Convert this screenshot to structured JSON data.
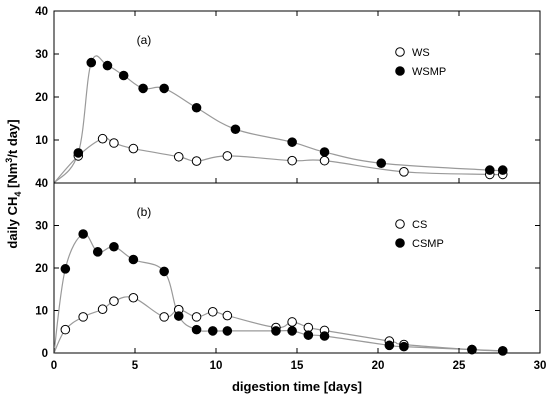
{
  "chart_data": {
    "type": "scatter",
    "xlabel": "digestion time [days]",
    "ylabel": {
      "prefix": "daily CH",
      "sub": "4",
      "mid": " [Nm",
      "sup": "3",
      "suffix": "/t   day]"
    },
    "x_ticks": [
      "0",
      "5",
      "10",
      "15",
      "20",
      "25",
      "30"
    ],
    "xlim": [
      0,
      30
    ],
    "colors": {
      "open_fill": "#ffffff",
      "filled_fill": "#000000",
      "curve": "#9a9a9a",
      "axis": "#000000"
    },
    "panels": [
      {
        "label": "(a)",
        "ylim": [
          0,
          40
        ],
        "y_ticks": [
          "40",
          "30",
          "20",
          "10",
          ""
        ],
        "legend": {
          "position": "top-right"
        },
        "series": [
          {
            "name": "WS",
            "marker": "open-circle",
            "points": [
              [
                1.5,
                6.3
              ],
              [
                3.0,
                10.3
              ],
              [
                3.7,
                9.3
              ],
              [
                4.9,
                8.0
              ],
              [
                7.7,
                6.1
              ],
              [
                8.8,
                5.1
              ],
              [
                10.7,
                6.3
              ],
              [
                14.7,
                5.2
              ],
              [
                16.7,
                5.2
              ],
              [
                21.6,
                2.6
              ],
              [
                26.9,
                2.0
              ],
              [
                27.7,
                2.0
              ]
            ],
            "curve": [
              [
                0,
                0
              ],
              [
                1.5,
                6.3
              ],
              [
                3.0,
                10.3
              ],
              [
                3.7,
                9.3
              ],
              [
                4.9,
                8.0
              ],
              [
                7.7,
                6.1
              ],
              [
                8.8,
                5.1
              ],
              [
                10.7,
                6.3
              ],
              [
                14.7,
                5.2
              ],
              [
                16.7,
                5.2
              ],
              [
                21.6,
                2.6
              ],
              [
                26.9,
                2.0
              ],
              [
                27.7,
                2.0
              ]
            ]
          },
          {
            "name": "WSMP",
            "marker": "filled-circle",
            "points": [
              [
                1.5,
                7.0
              ],
              [
                2.3,
                28.0
              ],
              [
                3.3,
                27.3
              ],
              [
                4.3,
                25.0
              ],
              [
                5.5,
                22.0
              ],
              [
                6.8,
                22.0
              ],
              [
                8.8,
                17.5
              ],
              [
                11.2,
                12.5
              ],
              [
                14.7,
                9.5
              ],
              [
                16.7,
                7.2
              ],
              [
                20.2,
                4.6
              ],
              [
                26.9,
                3.0
              ],
              [
                27.7,
                3.0
              ]
            ],
            "curve": [
              [
                0,
                0
              ],
              [
                1.5,
                7.0
              ],
              [
                2.3,
                28.0
              ],
              [
                3.3,
                27.3
              ],
              [
                4.3,
                25.0
              ],
              [
                5.5,
                22.0
              ],
              [
                6.8,
                22.0
              ],
              [
                8.8,
                17.5
              ],
              [
                11.2,
                12.5
              ],
              [
                14.7,
                9.5
              ],
              [
                16.7,
                7.2
              ],
              [
                20.2,
                4.6
              ],
              [
                26.9,
                3.0
              ],
              [
                27.7,
                3.0
              ]
            ]
          }
        ]
      },
      {
        "label": "(b)",
        "ylim": [
          0,
          40
        ],
        "y_ticks": [
          "40",
          "30",
          "20",
          "10",
          "0"
        ],
        "legend": {
          "position": "top-right"
        },
        "series": [
          {
            "name": "CS",
            "marker": "open-circle",
            "points": [
              [
                0.7,
                5.5
              ],
              [
                1.8,
                8.5
              ],
              [
                3.0,
                10.3
              ],
              [
                3.7,
                12.2
              ],
              [
                4.9,
                13.0
              ],
              [
                6.8,
                8.5
              ],
              [
                7.7,
                10.2
              ],
              [
                8.8,
                8.5
              ],
              [
                9.8,
                9.7
              ],
              [
                10.7,
                8.8
              ],
              [
                13.7,
                6.0
              ],
              [
                14.7,
                7.3
              ],
              [
                15.7,
                6.0
              ],
              [
                16.7,
                5.3
              ],
              [
                20.7,
                2.8
              ],
              [
                21.6,
                2.0
              ],
              [
                25.8,
                0.8
              ],
              [
                27.7,
                0.5
              ]
            ],
            "curve": [
              [
                0,
                0
              ],
              [
                0.7,
                5.5
              ],
              [
                1.8,
                8.5
              ],
              [
                3.0,
                10.3
              ],
              [
                3.7,
                12.2
              ],
              [
                4.9,
                13.0
              ],
              [
                6.8,
                8.5
              ],
              [
                7.7,
                10.2
              ],
              [
                8.8,
                8.5
              ],
              [
                9.8,
                9.7
              ],
              [
                10.7,
                8.8
              ],
              [
                13.7,
                6.0
              ],
              [
                14.7,
                7.3
              ],
              [
                15.7,
                6.0
              ],
              [
                16.7,
                5.3
              ],
              [
                20.7,
                2.8
              ],
              [
                21.6,
                2.0
              ],
              [
                25.8,
                0.8
              ],
              [
                27.7,
                0.5
              ]
            ]
          },
          {
            "name": "CSMP",
            "marker": "filled-circle",
            "points": [
              [
                0.7,
                19.8
              ],
              [
                1.8,
                28.0
              ],
              [
                2.7,
                23.8
              ],
              [
                3.7,
                25.0
              ],
              [
                4.9,
                22.0
              ],
              [
                6.8,
                19.2
              ],
              [
                7.7,
                8.7
              ],
              [
                8.8,
                5.5
              ],
              [
                9.8,
                5.2
              ],
              [
                10.7,
                5.2
              ],
              [
                13.7,
                5.2
              ],
              [
                14.7,
                5.2
              ],
              [
                15.7,
                4.2
              ],
              [
                16.7,
                4.0
              ],
              [
                20.7,
                1.8
              ],
              [
                21.6,
                1.5
              ],
              [
                25.8,
                0.8
              ],
              [
                27.7,
                0.5
              ]
            ],
            "curve": [
              [
                0,
                0
              ],
              [
                0.7,
                19.8
              ],
              [
                1.8,
                28.0
              ],
              [
                2.7,
                23.8
              ],
              [
                3.7,
                25.0
              ],
              [
                4.9,
                22.0
              ],
              [
                6.8,
                19.2
              ],
              [
                7.7,
                8.7
              ],
              [
                8.8,
                5.5
              ],
              [
                9.8,
                5.2
              ],
              [
                10.7,
                5.2
              ],
              [
                13.7,
                5.2
              ],
              [
                14.7,
                5.2
              ],
              [
                15.7,
                4.2
              ],
              [
                16.7,
                4.0
              ],
              [
                20.7,
                1.8
              ],
              [
                21.6,
                1.5
              ],
              [
                25.8,
                0.8
              ],
              [
                27.7,
                0.5
              ]
            ]
          }
        ]
      }
    ]
  }
}
